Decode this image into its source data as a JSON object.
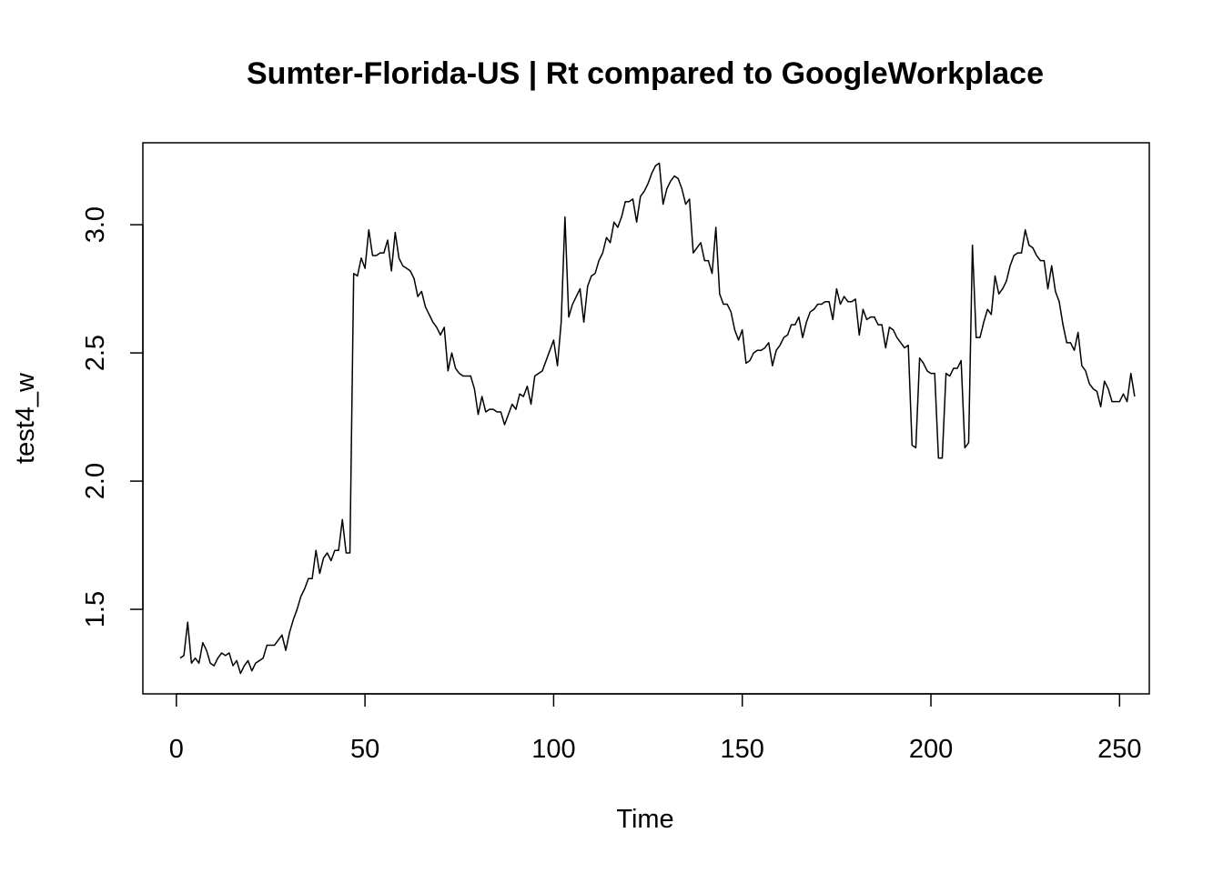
{
  "chart_data": {
    "type": "line",
    "title": "Sumter-Florida-US | Rt compared to GoogleWorkplace",
    "xlabel": "Time",
    "ylabel": "test4_w",
    "xlim": [
      1,
      248
    ],
    "ylim": [
      1.25,
      3.24
    ],
    "x_ticks": [
      0,
      50,
      100,
      150,
      200,
      250
    ],
    "y_ticks": [
      1.5,
      2.0,
      2.5,
      3.0
    ],
    "y_tick_labels": [
      "1.5",
      "2.0",
      "2.5",
      "3.0"
    ],
    "grid": false,
    "series": [
      {
        "x_start": 1,
        "x_step": 1,
        "values": [
          1.31,
          1.32,
          1.45,
          1.29,
          1.31,
          1.29,
          1.37,
          1.34,
          1.29,
          1.28,
          1.31,
          1.33,
          1.32,
          1.33,
          1.28,
          1.3,
          1.25,
          1.28,
          1.3,
          1.26,
          1.29,
          1.3,
          1.31,
          1.36,
          1.36,
          1.36,
          1.38,
          1.4,
          1.34,
          1.41,
          1.46,
          1.5,
          1.55,
          1.58,
          1.62,
          1.62,
          1.73,
          1.64,
          1.7,
          1.72,
          1.69,
          1.73,
          1.73,
          1.85,
          1.72,
          1.72,
          2.81,
          2.8,
          2.87,
          2.83,
          2.98,
          2.88,
          2.88,
          2.89,
          2.89,
          2.94,
          2.82,
          2.97,
          2.87,
          2.84,
          2.83,
          2.82,
          2.79,
          2.72,
          2.74,
          2.68,
          2.65,
          2.62,
          2.6,
          2.57,
          2.6,
          2.43,
          2.5,
          2.44,
          2.42,
          2.41,
          2.41,
          2.41,
          2.36,
          2.26,
          2.33,
          2.27,
          2.28,
          2.28,
          2.27,
          2.27,
          2.22,
          2.26,
          2.3,
          2.28,
          2.34,
          2.33,
          2.37,
          2.3,
          2.41,
          2.42,
          2.43,
          2.47,
          2.51,
          2.55,
          2.45,
          2.62,
          3.03,
          2.64,
          2.69,
          2.72,
          2.75,
          2.62,
          2.76,
          2.8,
          2.81,
          2.86,
          2.89,
          2.95,
          2.93,
          3.01,
          2.99,
          3.03,
          3.09,
          3.09,
          3.1,
          3.01,
          3.11,
          3.13,
          3.16,
          3.2,
          3.23,
          3.24,
          3.08,
          3.14,
          3.17,
          3.19,
          3.18,
          3.14,
          3.08,
          3.1,
          2.89,
          2.91,
          2.93,
          2.86,
          2.86,
          2.81,
          2.99,
          2.73,
          2.69,
          2.69,
          2.66,
          2.59,
          2.55,
          2.59,
          2.46,
          2.47,
          2.5,
          2.51,
          2.51,
          2.52,
          2.54,
          2.45,
          2.51,
          2.53,
          2.56,
          2.57,
          2.61,
          2.61,
          2.64,
          2.56,
          2.62,
          2.66,
          2.67,
          2.69,
          2.69,
          2.7,
          2.7,
          2.63,
          2.75,
          2.69,
          2.72,
          2.7,
          2.7,
          2.71,
          2.57,
          2.67,
          2.63,
          2.64,
          2.64,
          2.61,
          2.61,
          2.52,
          2.6,
          2.59,
          2.56,
          2.54,
          2.52,
          2.53,
          2.14,
          2.13,
          2.48,
          2.46,
          2.43,
          2.42,
          2.42,
          2.09,
          2.09,
          2.42,
          2.41,
          2.44,
          2.44,
          2.47,
          2.13,
          2.15,
          2.92,
          2.56,
          2.56,
          2.62,
          2.67,
          2.65,
          2.8,
          2.73,
          2.75,
          2.78,
          2.84,
          2.88,
          2.89,
          2.89,
          2.98,
          2.92,
          2.91,
          2.88,
          2.86,
          2.86,
          2.75,
          2.84,
          2.74,
          2.7,
          2.61,
          2.54,
          2.54,
          2.51,
          2.58,
          2.45,
          2.43,
          2.38,
          2.36,
          2.35,
          2.29,
          2.39,
          2.36,
          2.31,
          2.31,
          2.31,
          2.34,
          2.31,
          2.42,
          2.33
        ]
      }
    ]
  }
}
